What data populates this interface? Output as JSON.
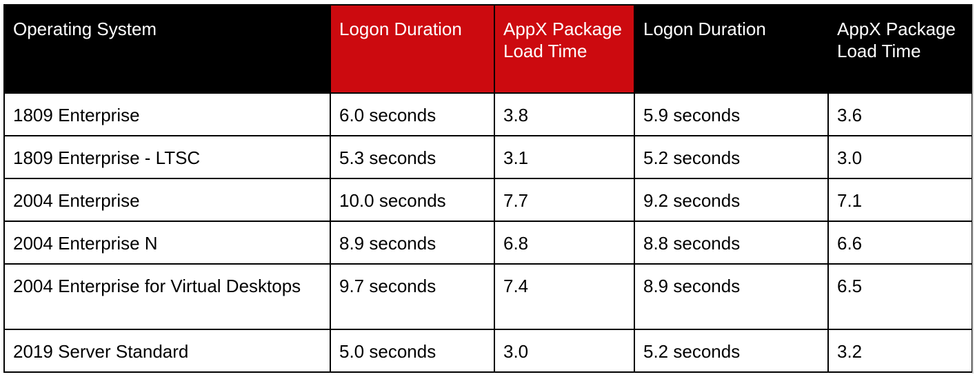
{
  "colors": {
    "header_black": "#000000",
    "header_red": "#cc0a0f",
    "header_text": "#ffffff",
    "body_text": "#000000",
    "border": "#000000"
  },
  "table": {
    "headers": [
      "Operating System",
      "Logon Duration",
      "AppX Package Load Time",
      "Logon Duration",
      "AppX Package Load Time"
    ],
    "rows": [
      [
        "1809 Enterprise",
        "6.0 seconds",
        "3.8",
        "5.9 seconds",
        "3.6"
      ],
      [
        "1809 Enterprise - LTSC",
        "5.3 seconds",
        "3.1",
        "5.2 seconds",
        "3.0"
      ],
      [
        "2004 Enterprise",
        "10.0 seconds",
        "7.7",
        "9.2 seconds",
        "7.1"
      ],
      [
        "2004 Enterprise N",
        "8.9 seconds",
        "6.8",
        "8.8 seconds",
        "6.6"
      ],
      [
        "2004 Enterprise for Virtual Desktops",
        "9.7 seconds",
        "7.4",
        "8.9 seconds",
        "6.5"
      ],
      [
        "2019 Server Standard",
        "5.0 seconds",
        "3.0",
        "5.2 seconds",
        "3.2"
      ]
    ]
  }
}
